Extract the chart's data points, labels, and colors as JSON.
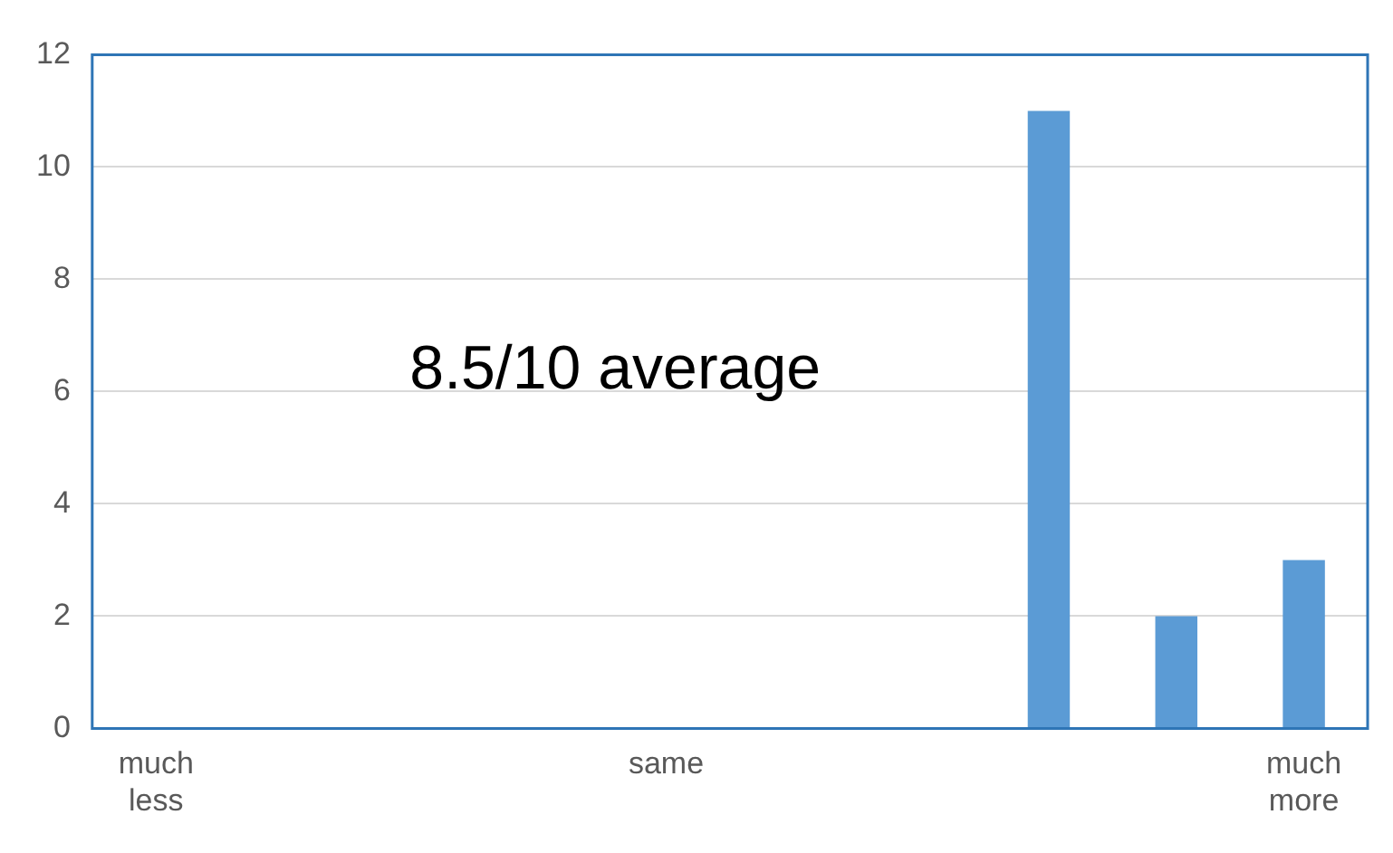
{
  "chart_data": {
    "type": "bar",
    "categories": [
      "much less",
      null,
      null,
      null,
      "same",
      null,
      null,
      null,
      null,
      "much more"
    ],
    "values": [
      0,
      0,
      0,
      0,
      0,
      0,
      0,
      11,
      2,
      3
    ],
    "color": "#5b9bd5",
    "ylim": [
      0,
      12
    ],
    "yticks": [
      0,
      2,
      4,
      6,
      8,
      10,
      12
    ],
    "grid": "y",
    "annotations": [
      "8.5/10 average"
    ]
  }
}
